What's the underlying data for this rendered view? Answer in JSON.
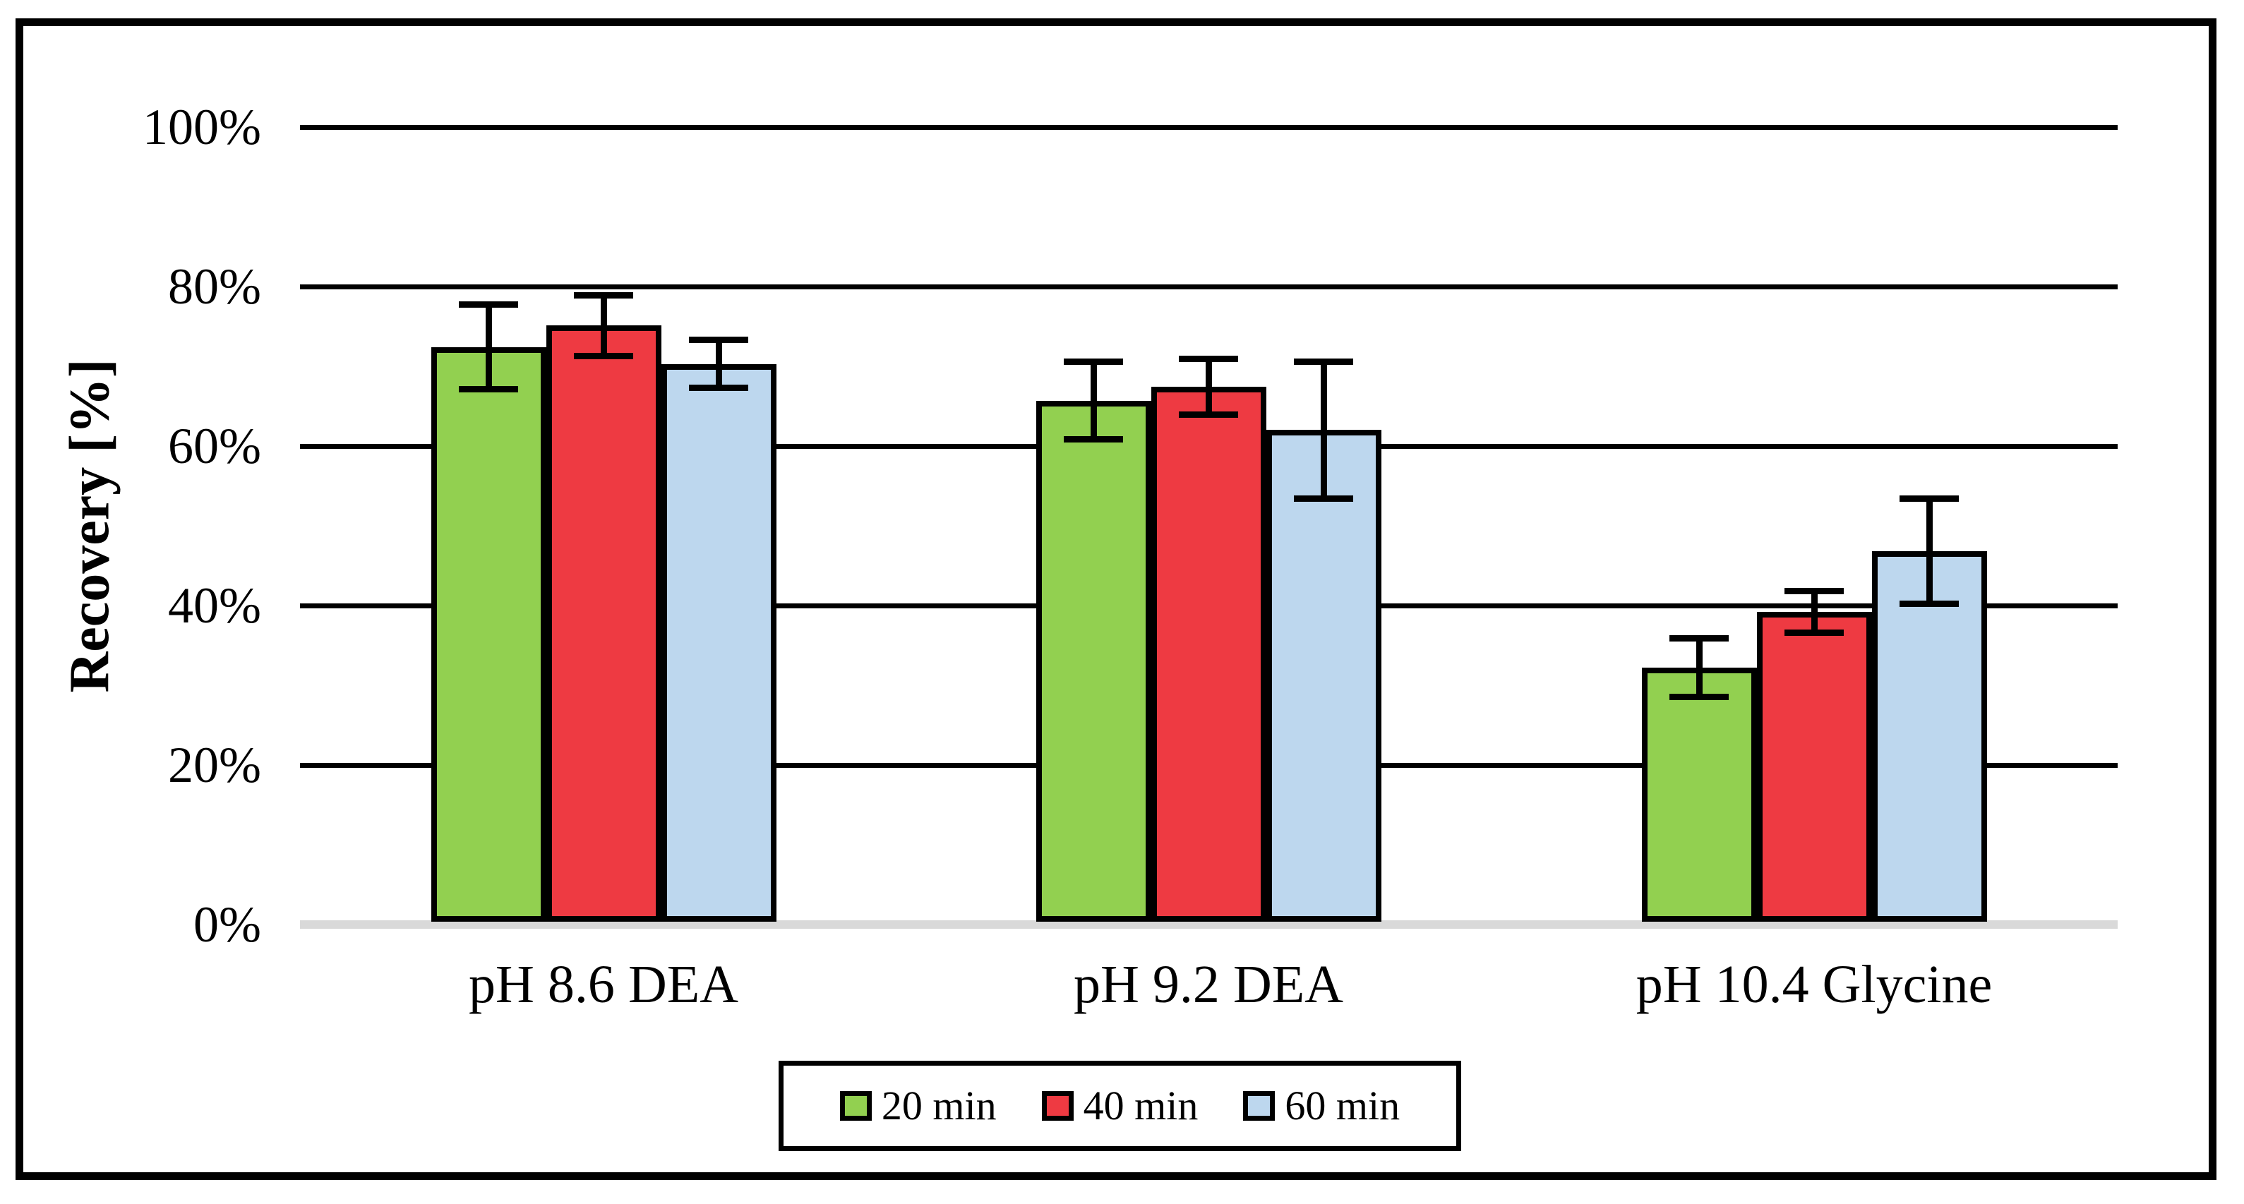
{
  "figure": {
    "y_axis_title": "Recovery [%]",
    "background_color": "#FFFFFF",
    "frame_color": "#000000"
  },
  "chart_data": {
    "type": "bar",
    "title": "",
    "xlabel": "",
    "ylabel": "Recovery [%]",
    "categories": [
      "pH 8.6 DEA",
      "pH 9.2 DEA",
      "pH 10.4 Glycine"
    ],
    "series": [
      {
        "name": "20 min",
        "color": "#92D050",
        "values": [
          72.4,
          65.7,
          32.2
        ],
        "errors": [
          5.3,
          4.9,
          3.7
        ]
      },
      {
        "name": "40 min",
        "color": "#EE3A42",
        "values": [
          75.1,
          67.4,
          39.2
        ],
        "errors": [
          3.8,
          3.5,
          2.6
        ]
      },
      {
        "name": "60 min",
        "color": "#BDD7EE",
        "values": [
          70.3,
          62.0,
          46.8
        ],
        "errors": [
          3.0,
          8.6,
          6.6
        ]
      }
    ],
    "ylim": [
      0,
      100
    ],
    "yticks": [
      0,
      20,
      40,
      60,
      80,
      100
    ],
    "ytick_labels": [
      "0%",
      "20%",
      "40%",
      "60%",
      "80%",
      "100%"
    ],
    "grid": true,
    "gridline_color": "#000000",
    "baseline_color": "#D9D9D9",
    "bar_border_color": "#000000",
    "error_bar_color": "#000000",
    "legend_position": "bottom"
  }
}
